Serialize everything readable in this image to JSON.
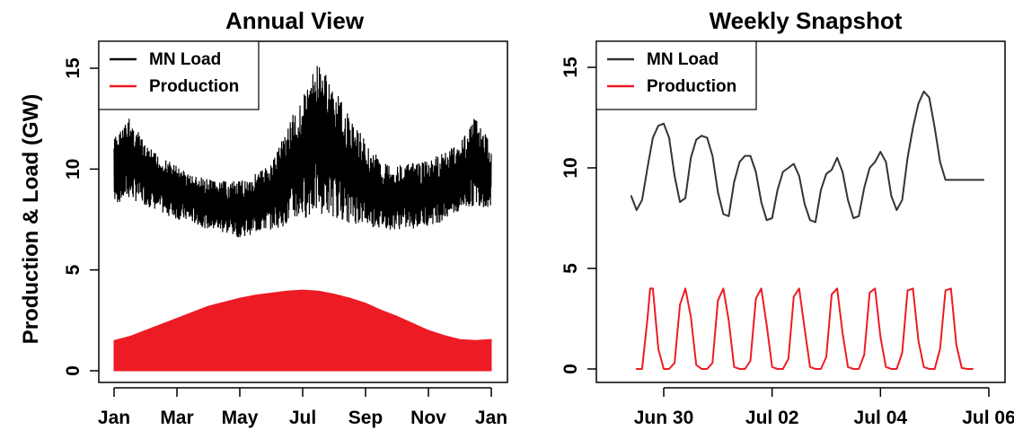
{
  "shared_ylabel": "Production & Load (GW)",
  "chart_data": [
    {
      "type": "area",
      "title": "Annual View",
      "xlabel": "",
      "ylabel": "Production & Load (GW)",
      "ylim": [
        0,
        16
      ],
      "yticks": [
        0,
        5,
        10,
        15
      ],
      "xlim": [
        0,
        12
      ],
      "xticks": [
        {
          "label": "Jan",
          "pos": 0
        },
        {
          "label": "Mar",
          "pos": 2
        },
        {
          "label": "May",
          "pos": 4
        },
        {
          "label": "Jul",
          "pos": 6
        },
        {
          "label": "Sep",
          "pos": 8
        },
        {
          "label": "Nov",
          "pos": 10
        },
        {
          "label": "Jan",
          "pos": 12
        }
      ],
      "grid": false,
      "legend": {
        "placement": "top-left",
        "entries": [
          {
            "label": "MN Load",
            "color": "#000000"
          },
          {
            "label": "Production",
            "color": "#ed1c24"
          }
        ]
      },
      "series": [
        {
          "name": "MN Load",
          "color": "#000000",
          "x": [
            0,
            0.5,
            1,
            1.5,
            2,
            2.5,
            3,
            3.5,
            4,
            4.5,
            5,
            5.5,
            6,
            6.5,
            7,
            7.5,
            8,
            8.5,
            9,
            9.5,
            10,
            10.5,
            11,
            11.5,
            12
          ],
          "upper": [
            11.6,
            12.6,
            11.2,
            10.6,
            10.2,
            9.7,
            9.5,
            9.4,
            9.4,
            9.8,
            10.3,
            12.2,
            13.6,
            15.4,
            14.0,
            12.6,
            11.4,
            10.4,
            10.2,
            10.3,
            10.4,
            10.9,
            11.4,
            12.7,
            11.2
          ],
          "lower": [
            8.2,
            8.5,
            8.2,
            7.8,
            7.5,
            7.3,
            7.0,
            6.8,
            6.6,
            6.8,
            7.0,
            7.2,
            7.5,
            7.8,
            7.6,
            7.3,
            7.2,
            7.0,
            7.0,
            7.0,
            7.2,
            7.4,
            7.8,
            8.2,
            8.0
          ]
        },
        {
          "name": "Production",
          "color": "#ed1c24",
          "x": [
            0,
            0.5,
            1,
            1.5,
            2,
            2.5,
            3,
            3.5,
            4,
            4.5,
            5,
            5.5,
            6,
            6.5,
            7,
            7.5,
            8,
            8.5,
            9,
            9.5,
            10,
            10.5,
            11,
            11.5,
            12
          ],
          "upper": [
            1.5,
            1.7,
            2.0,
            2.3,
            2.6,
            2.9,
            3.2,
            3.4,
            3.6,
            3.75,
            3.85,
            3.95,
            4.0,
            3.95,
            3.8,
            3.6,
            3.35,
            3.0,
            2.7,
            2.35,
            2.0,
            1.75,
            1.55,
            1.5,
            1.55
          ],
          "lower": [
            0,
            0,
            0,
            0,
            0,
            0,
            0,
            0,
            0,
            0,
            0,
            0,
            0,
            0,
            0,
            0,
            0,
            0,
            0,
            0,
            0,
            0,
            0,
            0,
            0
          ]
        }
      ]
    },
    {
      "type": "line",
      "title": "Weekly Snapshot",
      "xlabel": "",
      "ylabel": "",
      "ylim": [
        0,
        16
      ],
      "yticks": [
        0,
        5,
        10,
        15
      ],
      "xlim": [
        -0.6,
        6.0
      ],
      "xticks": [
        {
          "label": "Jun 30",
          "pos": 0
        },
        {
          "label": "Jul 02",
          "pos": 2
        },
        {
          "label": "Jul 04",
          "pos": 4
        },
        {
          "label": "Jul 06",
          "pos": 6
        }
      ],
      "grid": false,
      "legend": {
        "placement": "top-left",
        "entries": [
          {
            "label": "MN Load",
            "color": "#333333"
          },
          {
            "label": "Production",
            "color": "#ed1c24"
          }
        ]
      },
      "series": [
        {
          "name": "MN Load",
          "color": "#333333",
          "x": [
            -0.6,
            -0.5,
            -0.4,
            -0.3,
            -0.2,
            -0.1,
            0.0,
            0.1,
            0.2,
            0.3,
            0.4,
            0.5,
            0.6,
            0.7,
            0.8,
            0.9,
            1.0,
            1.1,
            1.2,
            1.3,
            1.4,
            1.5,
            1.6,
            1.7,
            1.8,
            1.9,
            2.0,
            2.1,
            2.2,
            2.3,
            2.4,
            2.5,
            2.6,
            2.7,
            2.8,
            2.9,
            3.0,
            3.1,
            3.2,
            3.3,
            3.4,
            3.5,
            3.6,
            3.7,
            3.8,
            3.9,
            4.0,
            4.1,
            4.2,
            4.3,
            4.4,
            4.5,
            4.6,
            4.7,
            4.8,
            4.9,
            5.0,
            5.1,
            5.2,
            5.3,
            5.4,
            5.5,
            5.6,
            5.7,
            5.8,
            5.9
          ],
          "y": [
            8.6,
            7.9,
            8.4,
            10.0,
            11.5,
            12.1,
            12.2,
            11.5,
            9.6,
            8.3,
            8.5,
            10.5,
            11.4,
            11.6,
            11.5,
            10.6,
            8.8,
            7.7,
            7.6,
            9.3,
            10.3,
            10.6,
            10.6,
            9.8,
            8.3,
            7.4,
            7.5,
            8.9,
            9.8,
            10.0,
            10.2,
            9.6,
            8.2,
            7.4,
            7.3,
            8.9,
            9.7,
            9.9,
            10.5,
            9.8,
            8.4,
            7.5,
            7.6,
            9.0,
            10.0,
            10.3,
            10.8,
            10.3,
            8.6,
            7.9,
            8.4,
            10.5,
            12.0,
            13.2,
            13.8,
            13.5,
            12.0,
            10.3,
            9.4,
            9.4,
            9.4,
            9.4,
            9.4,
            9.4,
            9.4,
            9.4
          ]
        },
        {
          "name": "Production",
          "color": "#ed1c24",
          "peaks": [
            -0.25,
            0.25,
            0.75,
            1.25,
            1.75,
            2.25,
            2.75,
            3.25,
            3.75,
            4.25,
            4.75,
            5.25
          ],
          "peak_value": 4.0,
          "x_note": "see x/y",
          "x": [
            -0.5,
            -0.4,
            -0.3,
            -0.25,
            -0.2,
            -0.1,
            0.0,
            0.1,
            0.2,
            0.3,
            0.4,
            0.5,
            0.6,
            0.7,
            0.8,
            0.9,
            1.0,
            1.1,
            1.2,
            1.3,
            1.4,
            1.5,
            1.6,
            1.7,
            1.8,
            1.9,
            2.0,
            2.1,
            2.2,
            2.3,
            2.4,
            2.5,
            2.6,
            2.7,
            2.8,
            2.9,
            3.0,
            3.1,
            3.2,
            3.3,
            3.4,
            3.5,
            3.6,
            3.7,
            3.8,
            3.9,
            4.0,
            4.1,
            4.2,
            4.3,
            4.4,
            4.5,
            4.6,
            4.7,
            4.8,
            4.9,
            5.0,
            5.1,
            5.2,
            5.3,
            5.4,
            5.5,
            5.6,
            5.7
          ],
          "y": [
            0,
            0,
            2.5,
            4.0,
            4.0,
            1.0,
            0,
            0,
            0.3,
            3.2,
            4.0,
            2.6,
            0.2,
            0,
            0,
            0.3,
            3.4,
            4.0,
            2.4,
            0.1,
            0,
            0,
            0.4,
            3.5,
            4.0,
            2.2,
            0.1,
            0,
            0,
            0.5,
            3.6,
            4.0,
            2.0,
            0.1,
            0,
            0,
            0.6,
            3.7,
            4.0,
            1.8,
            0.1,
            0,
            0,
            0.7,
            3.8,
            4.0,
            1.6,
            0.1,
            0,
            0,
            0.8,
            3.9,
            4.0,
            1.4,
            0.1,
            0,
            0,
            1.0,
            3.9,
            4.0,
            1.2,
            0.05,
            0,
            0
          ]
        }
      ]
    }
  ]
}
